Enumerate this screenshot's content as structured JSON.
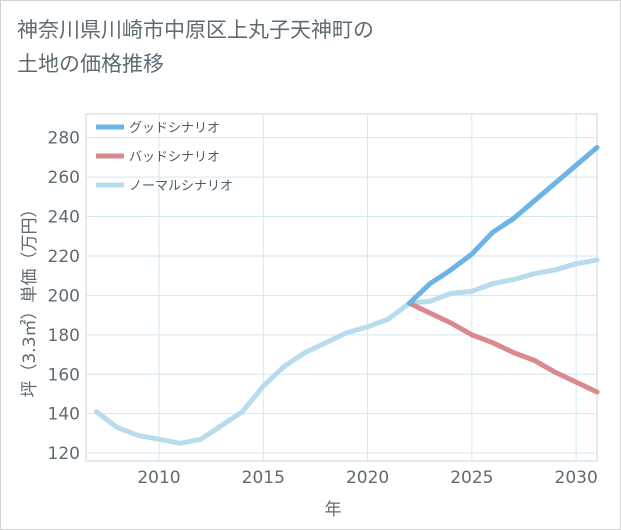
{
  "title_lines": [
    "神奈川県川崎市中原区上丸子天神町の",
    "土地の価格推移"
  ],
  "chart_data": {
    "type": "line",
    "title": "神奈川県川崎市中原区上丸子天神町の土地の価格推移",
    "xlabel": "年",
    "ylabel": "坪（3.3㎡）単価（万円）",
    "xlim": [
      2006.5,
      2031
    ],
    "ylim": [
      116,
      292
    ],
    "xticks": [
      2010,
      2015,
      2020,
      2025,
      2030
    ],
    "yticks": [
      120,
      140,
      160,
      180,
      200,
      220,
      240,
      260,
      280
    ],
    "grid": true,
    "legend_position": "top-left",
    "series": [
      {
        "name": "グッドシナリオ",
        "color": "#6cb4e6",
        "x": [
          2022,
          2023,
          2024,
          2025,
          2026,
          2027,
          2028,
          2029,
          2030,
          2031
        ],
        "y": [
          196,
          206,
          213,
          221,
          232,
          239,
          248,
          257,
          266,
          275
        ]
      },
      {
        "name": "バッドシナリオ",
        "color": "#d98a8f",
        "x": [
          2022,
          2023,
          2024,
          2025,
          2026,
          2027,
          2028,
          2029,
          2030,
          2031
        ],
        "y": [
          196,
          191,
          186,
          180,
          176,
          171,
          167,
          161,
          156,
          151
        ]
      },
      {
        "name": "ノーマルシナリオ",
        "color": "#b8dcee",
        "x": [
          2007,
          2008,
          2009,
          2010,
          2011,
          2012,
          2013,
          2014,
          2015,
          2016,
          2017,
          2018,
          2019,
          2020,
          2021,
          2022,
          2023,
          2024,
          2025,
          2026,
          2027,
          2028,
          2029,
          2030,
          2031
        ],
        "y": [
          141,
          133,
          129,
          127,
          125,
          127,
          134,
          141,
          154,
          164,
          171,
          176,
          181,
          184,
          188,
          196,
          197,
          201,
          202,
          206,
          208,
          211,
          213,
          216,
          218
        ]
      }
    ]
  }
}
